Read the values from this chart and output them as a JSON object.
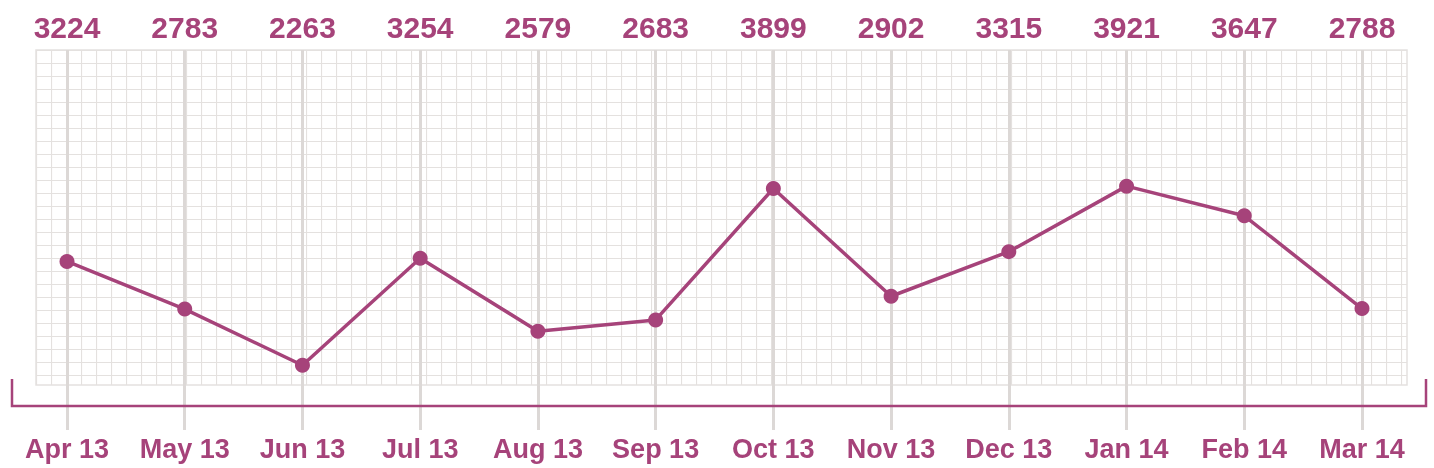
{
  "chart_data": {
    "type": "line",
    "categories": [
      "Apr 13",
      "May 13",
      "Jun 13",
      "Jul 13",
      "Aug 13",
      "Sep 13",
      "Oct 13",
      "Nov 13",
      "Dec 13",
      "Jan 14",
      "Feb 14",
      "Mar 14"
    ],
    "values": [
      3224,
      2783,
      2263,
      3254,
      2579,
      2683,
      3899,
      2902,
      3315,
      3921,
      3647,
      2788
    ],
    "color": "#a6437a",
    "grid": "x",
    "marker": "circle",
    "tick_labels": "x",
    "data_labels": true
  }
}
